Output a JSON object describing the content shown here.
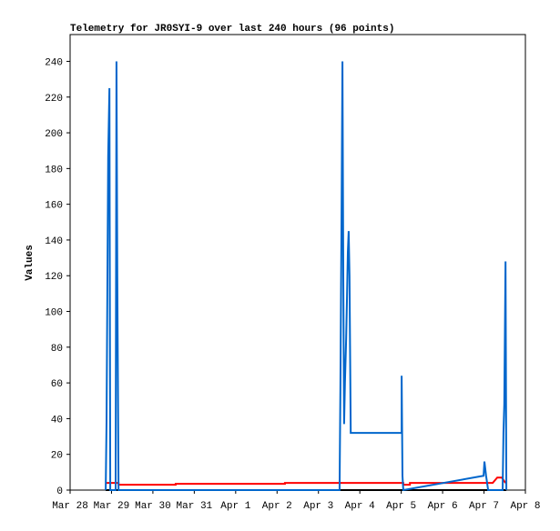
{
  "chart_data": {
    "type": "line",
    "title": "Telemetry for JR0SYI-9 over last 240 hours (96 points)",
    "y_label": "Values",
    "xlim": [
      0,
      11
    ],
    "xticks": [
      {
        "value": 0,
        "label": "Mar 28"
      },
      {
        "value": 1,
        "label": "Mar 29"
      },
      {
        "value": 2,
        "label": "Mar 30"
      },
      {
        "value": 3,
        "label": "Mar 31"
      },
      {
        "value": 4,
        "label": "Apr 1"
      },
      {
        "value": 5,
        "label": "Apr 2"
      },
      {
        "value": 6,
        "label": "Apr 3"
      },
      {
        "value": 7,
        "label": "Apr 4"
      },
      {
        "value": 8,
        "label": "Apr 5"
      },
      {
        "value": 9,
        "label": "Apr 6"
      },
      {
        "value": 10,
        "label": "Apr 7"
      },
      {
        "value": 11,
        "label": "Apr 8"
      }
    ],
    "ylim": [
      0,
      255
    ],
    "yticks": [
      0,
      20,
      40,
      60,
      80,
      100,
      120,
      140,
      160,
      180,
      200,
      220,
      240
    ],
    "series": [
      {
        "color": "#000000",
        "x": [
          0.86,
          10.54
        ],
        "values": [
          0,
          0
        ]
      },
      {
        "color": "#ff0000",
        "x": [
          0.86,
          1.17,
          1.17,
          2.55,
          2.55,
          5.19,
          5.19,
          8.05,
          8.05,
          8.21,
          8.21,
          10.21,
          10.32,
          10.43,
          10.52
        ],
        "values": [
          4,
          4,
          3,
          3,
          3.5,
          3.5,
          4,
          4,
          3,
          3,
          4,
          4,
          7,
          7,
          4
        ]
      },
      {
        "color": "#0066cc",
        "x": [
          0.86,
          0.88,
          0.9,
          0.92,
          0.95,
          0.97,
          1.1,
          1.12,
          1.14,
          1.17,
          6.51,
          6.53,
          6.56,
          6.58,
          6.6,
          6.62,
          6.64,
          6.67,
          6.69,
          6.71,
          6.73,
          6.75,
          6.78,
          8.01,
          8.01,
          8.03,
          8.05,
          9.99,
          10.01,
          10.05,
          10.1,
          10.45,
          10.47,
          10.49,
          10.52,
          10.54
        ],
        "values": [
          0,
          38,
          112,
          187,
          225,
          0,
          0,
          240,
          120,
          0,
          0,
          56,
          160,
          240,
          120,
          37,
          60,
          85,
          108,
          133,
          145,
          120,
          32,
          32,
          64,
          8,
          0,
          8,
          16,
          8,
          0,
          0,
          32,
          48,
          128,
          0
        ]
      }
    ]
  }
}
